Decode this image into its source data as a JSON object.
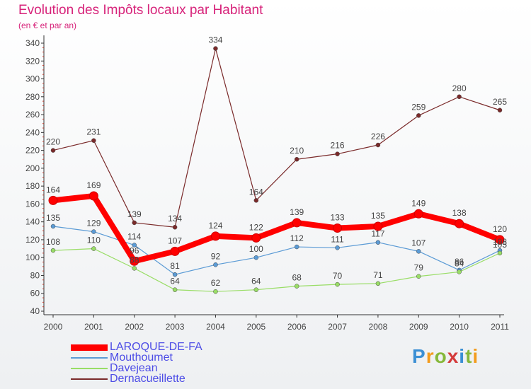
{
  "header": {
    "title": "Evolution des Impôts locaux par Habitant",
    "subtitle": "(en € et par an)"
  },
  "logo": {
    "text": "Proxiti",
    "colors": [
      "#3b8fd4",
      "#f39c1d",
      "#86b83a",
      "#d43b3b",
      "#3b8fd4",
      "#86b83a",
      "#f39c1d"
    ]
  },
  "chart_data": {
    "type": "line",
    "title": "Evolution des Impôts locaux par Habitant",
    "subtitle": "(en € et par an)",
    "x": [
      "2000",
      "2001",
      "2002",
      "2003",
      "2004",
      "2005",
      "2006",
      "2007",
      "2008",
      "2009",
      "2010",
      "2011"
    ],
    "ylim": [
      40,
      340
    ],
    "yticks": [
      40,
      60,
      80,
      100,
      120,
      140,
      160,
      180,
      200,
      220,
      240,
      260,
      280,
      300,
      320,
      340
    ],
    "grid": false,
    "legend": "bottom-left",
    "series": [
      {
        "name": "LAROQUE-DE-FA",
        "color": "#ff0000",
        "values": [
          164,
          169,
          96,
          107,
          124,
          122,
          139,
          133,
          135,
          149,
          138,
          120
        ],
        "labels": [
          "164",
          "169",
          "96",
          "107",
          "124",
          "122",
          "139",
          "133",
          "135",
          "149",
          "138",
          "120"
        ]
      },
      {
        "name": "Mouthoumet",
        "color": "#5b9bd5",
        "values": [
          135,
          129,
          114,
          81,
          92,
          100,
          112,
          111,
          117,
          107,
          86,
          108
        ],
        "labels": [
          "135",
          "129",
          "114",
          "81",
          "92",
          "100",
          "112",
          "111",
          "117",
          "107",
          "86",
          "108"
        ]
      },
      {
        "name": "Davejean",
        "color": "#99dd66",
        "values": [
          108,
          110,
          88,
          64,
          62,
          64,
          68,
          70,
          71,
          79,
          84,
          105
        ],
        "labels": [
          "108",
          "110",
          "88",
          "64",
          "62",
          "64",
          "68",
          "70",
          "71",
          "79",
          "84",
          "105"
        ]
      },
      {
        "name": "Dernacueillette",
        "color": "#7a2a2a",
        "values": [
          220,
          231,
          139,
          134,
          334,
          164,
          210,
          216,
          226,
          259,
          280,
          265
        ],
        "labels": [
          "220",
          "231",
          "139",
          "134",
          "334",
          "164",
          "210",
          "216",
          "226",
          "259",
          "280",
          "265"
        ]
      }
    ]
  }
}
